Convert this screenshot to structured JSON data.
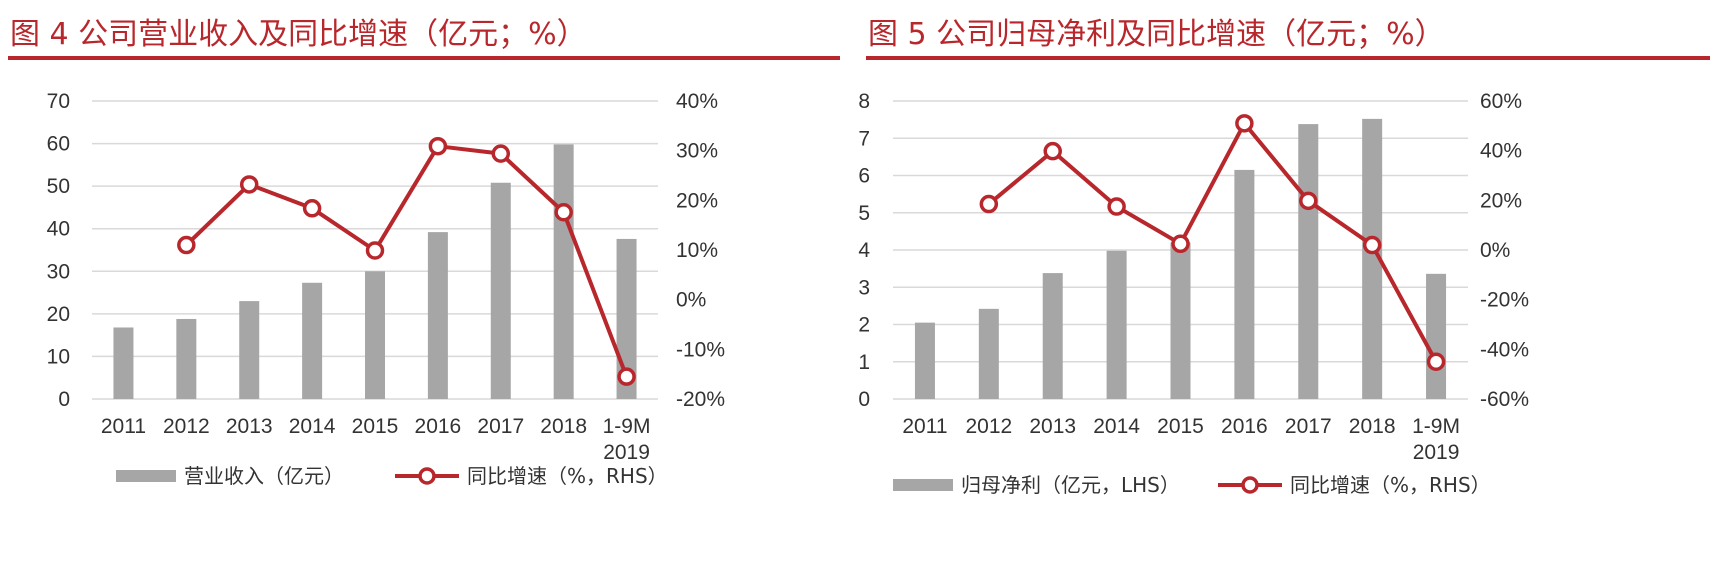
{
  "colors": {
    "title": "#b8272c",
    "bar": "#a6a6a6",
    "line": "#b8272c",
    "grid": "#d9d9d9",
    "text": "#333333"
  },
  "chart_data": [
    {
      "type": "bar+line",
      "title": "图 4 公司营业收入及同比增速（亿元；%）",
      "categories": [
        "2011",
        "2012",
        "2013",
        "2014",
        "2015",
        "2016",
        "2017",
        "2018",
        "1-9M\n2019"
      ],
      "ylim_left": [
        0,
        70
      ],
      "left_ticks": [
        "0",
        "10",
        "20",
        "30",
        "40",
        "50",
        "60",
        "70"
      ],
      "ylim_right": [
        -20,
        40
      ],
      "right_ticks": [
        "-20%",
        "-10%",
        "0%",
        "10%",
        "20%",
        "30%",
        "40%"
      ],
      "grid": true,
      "legend_position": "bottom",
      "series": [
        {
          "name": "营业收入（亿元）",
          "type": "bar",
          "axis": "left",
          "values": [
            16.8,
            18.8,
            23.0,
            27.3,
            30.0,
            39.2,
            50.8,
            59.8,
            37.6
          ]
        },
        {
          "name": "同比增速（%，RHS）",
          "type": "line",
          "axis": "right",
          "values": [
            null,
            11.0,
            23.2,
            18.4,
            9.9,
            30.9,
            29.4,
            17.6,
            -15.5
          ]
        }
      ]
    },
    {
      "type": "bar+line",
      "title": "图 5 公司归母净利及同比增速（亿元；%）",
      "categories": [
        "2011",
        "2012",
        "2013",
        "2014",
        "2015",
        "2016",
        "2017",
        "2018",
        "1-9M\n2019"
      ],
      "ylim_left": [
        0,
        8
      ],
      "left_ticks": [
        "0",
        "1",
        "2",
        "3",
        "4",
        "5",
        "6",
        "7",
        "8"
      ],
      "ylim_right": [
        -60,
        60
      ],
      "right_ticks": [
        "-60%",
        "-40%",
        "-20%",
        "0%",
        "20%",
        "40%",
        "60%"
      ],
      "grid": true,
      "legend_position": "bottom",
      "series": [
        {
          "name": "归母净利（亿元，LHS）",
          "type": "bar",
          "axis": "left",
          "values": [
            2.05,
            2.42,
            3.38,
            3.98,
            4.2,
            6.15,
            7.38,
            7.52,
            3.36
          ]
        },
        {
          "name": "同比增速（%，RHS）",
          "type": "line",
          "axis": "right",
          "values": [
            null,
            18.5,
            39.8,
            17.5,
            2.5,
            51.0,
            19.8,
            2.0,
            -45.0
          ]
        }
      ]
    }
  ]
}
